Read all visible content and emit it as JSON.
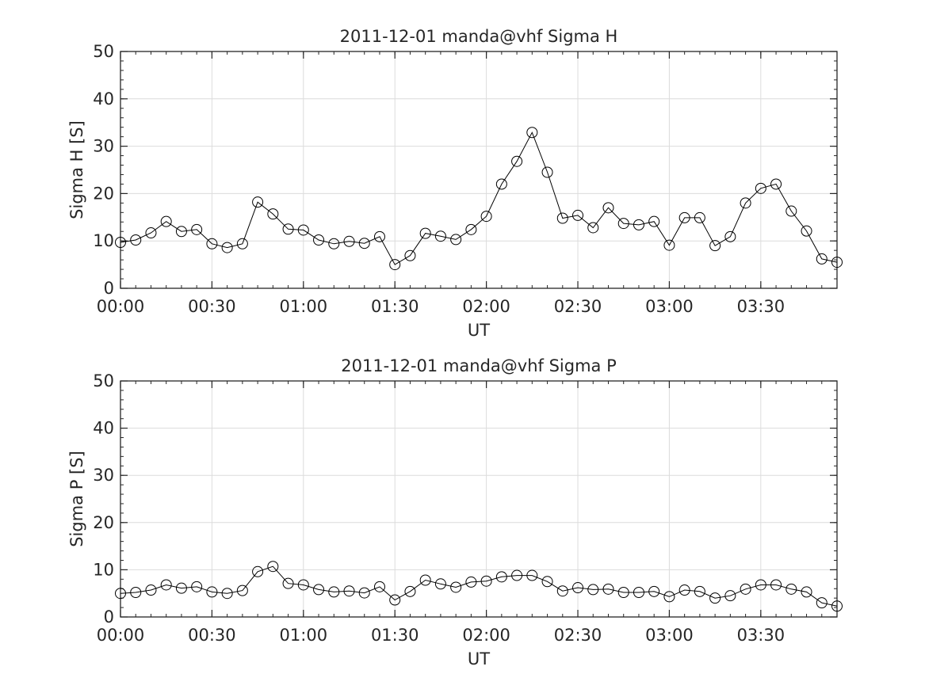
{
  "chart_data": [
    {
      "type": "line",
      "title": "2011-12-01  manda@vhf Sigma H",
      "xlabel": "UT",
      "ylabel": "Sigma H [S]",
      "x_unit": "minutes after 00:00 UT",
      "x": [
        0,
        5,
        10,
        15,
        20,
        25,
        30,
        35,
        40,
        45,
        50,
        55,
        60,
        65,
        70,
        75,
        80,
        85,
        90,
        95,
        100,
        105,
        110,
        115,
        120,
        125,
        130,
        135,
        140,
        145,
        150,
        155,
        160,
        165,
        170,
        175,
        180,
        185,
        190,
        195,
        200,
        205,
        210,
        215,
        220,
        225,
        230,
        235
      ],
      "xlim": [
        0,
        235
      ],
      "xtick_values": [
        0,
        30,
        60,
        90,
        120,
        150,
        180,
        210
      ],
      "xtick_labels": [
        "00:00",
        "00:30",
        "01:00",
        "01:30",
        "02:00",
        "02:30",
        "03:00",
        "03:30"
      ],
      "ylim": [
        0,
        50
      ],
      "ytick_labels": [
        "0",
        "10",
        "20",
        "30",
        "40",
        "50"
      ],
      "grid": true,
      "marker": "open-circle",
      "series": [
        {
          "values": [
            9.7,
            10.2,
            11.7,
            14.1,
            12.0,
            12.4,
            9.4,
            8.6,
            9.4,
            18.2,
            15.7,
            12.5,
            12.3,
            10.2,
            9.4,
            9.9,
            9.5,
            10.9,
            5.0,
            6.9,
            11.6,
            11.0,
            10.3,
            12.4,
            15.2,
            22.0,
            26.8,
            32.9,
            24.5,
            14.8,
            15.4,
            12.8,
            17.0,
            13.7,
            13.4,
            14.1,
            9.1,
            14.9,
            14.9,
            9.0,
            10.9,
            18.0,
            21.1,
            22.0,
            16.3,
            12.1,
            6.2,
            5.5
          ]
        }
      ]
    },
    {
      "type": "line",
      "title": "2011-12-01  manda@vhf Sigma P",
      "xlabel": "UT",
      "ylabel": "Sigma P [S]",
      "x_unit": "minutes after 00:00 UT",
      "x": [
        0,
        5,
        10,
        15,
        20,
        25,
        30,
        35,
        40,
        45,
        50,
        55,
        60,
        65,
        70,
        75,
        80,
        85,
        90,
        95,
        100,
        105,
        110,
        115,
        120,
        125,
        130,
        135,
        140,
        145,
        150,
        155,
        160,
        165,
        170,
        175,
        180,
        185,
        190,
        195,
        200,
        205,
        210,
        215,
        220,
        225,
        230,
        235
      ],
      "xlim": [
        0,
        235
      ],
      "xtick_values": [
        0,
        30,
        60,
        90,
        120,
        150,
        180,
        210
      ],
      "xtick_labels": [
        "00:00",
        "00:30",
        "01:00",
        "01:30",
        "02:00",
        "02:30",
        "03:00",
        "03:30"
      ],
      "ylim": [
        0,
        50
      ],
      "ytick_labels": [
        "0",
        "10",
        "20",
        "30",
        "40",
        "50"
      ],
      "grid": true,
      "marker": "open-circle",
      "series": [
        {
          "values": [
            5.0,
            5.2,
            5.7,
            6.8,
            6.1,
            6.4,
            5.3,
            5.0,
            5.6,
            9.6,
            10.7,
            7.1,
            6.8,
            5.8,
            5.3,
            5.5,
            5.1,
            6.4,
            3.6,
            5.4,
            7.8,
            7.0,
            6.3,
            7.4,
            7.6,
            8.5,
            8.8,
            8.8,
            7.5,
            5.5,
            6.2,
            5.8,
            5.9,
            5.2,
            5.2,
            5.4,
            4.3,
            5.7,
            5.4,
            4.0,
            4.5,
            5.9,
            6.8,
            6.8,
            5.9,
            5.3,
            3.0,
            2.3
          ]
        }
      ]
    }
  ]
}
